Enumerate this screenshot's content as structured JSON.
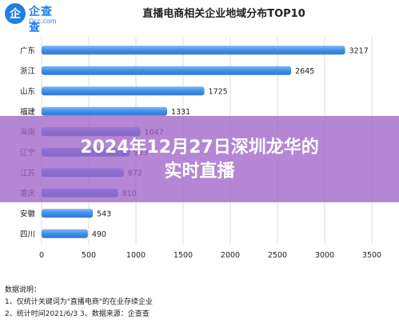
{
  "logo": {
    "mark": "企",
    "name": "企查查",
    "domain": "Qcc.com"
  },
  "chart_data": {
    "type": "bar",
    "orientation": "horizontal",
    "title": "直播电商相关企业地域分布TOP10",
    "categories": [
      "广东",
      "浙江",
      "山东",
      "福建",
      "海南",
      "辽宁",
      "江苏",
      "重庆",
      "安徽",
      "四川"
    ],
    "values": [
      3217,
      2645,
      1725,
      1331,
      1047,
      933,
      872,
      810,
      543,
      490
    ],
    "value_labels": [
      "3217",
      "2645",
      "1725",
      "1331",
      "1047",
      "933",
      "872",
      "810",
      "543",
      "490"
    ],
    "xlim": [
      0,
      3500
    ],
    "xticks": [
      "0",
      "500",
      "1000",
      "1500",
      "2000",
      "2500",
      "3000",
      "3500"
    ],
    "grid": true,
    "bar_color": "#3f8fe8"
  },
  "notes": {
    "heading": "数据说明：",
    "line1": "1、仅统计关键词为\"直播电商\"的在业存续企业",
    "line2": "2、统计时间2021/6/3    3、数据来源：企查查"
  },
  "overlay": {
    "headline_line1": "2024年12月27日深圳龙华的",
    "headline_line2": "实时直播"
  }
}
